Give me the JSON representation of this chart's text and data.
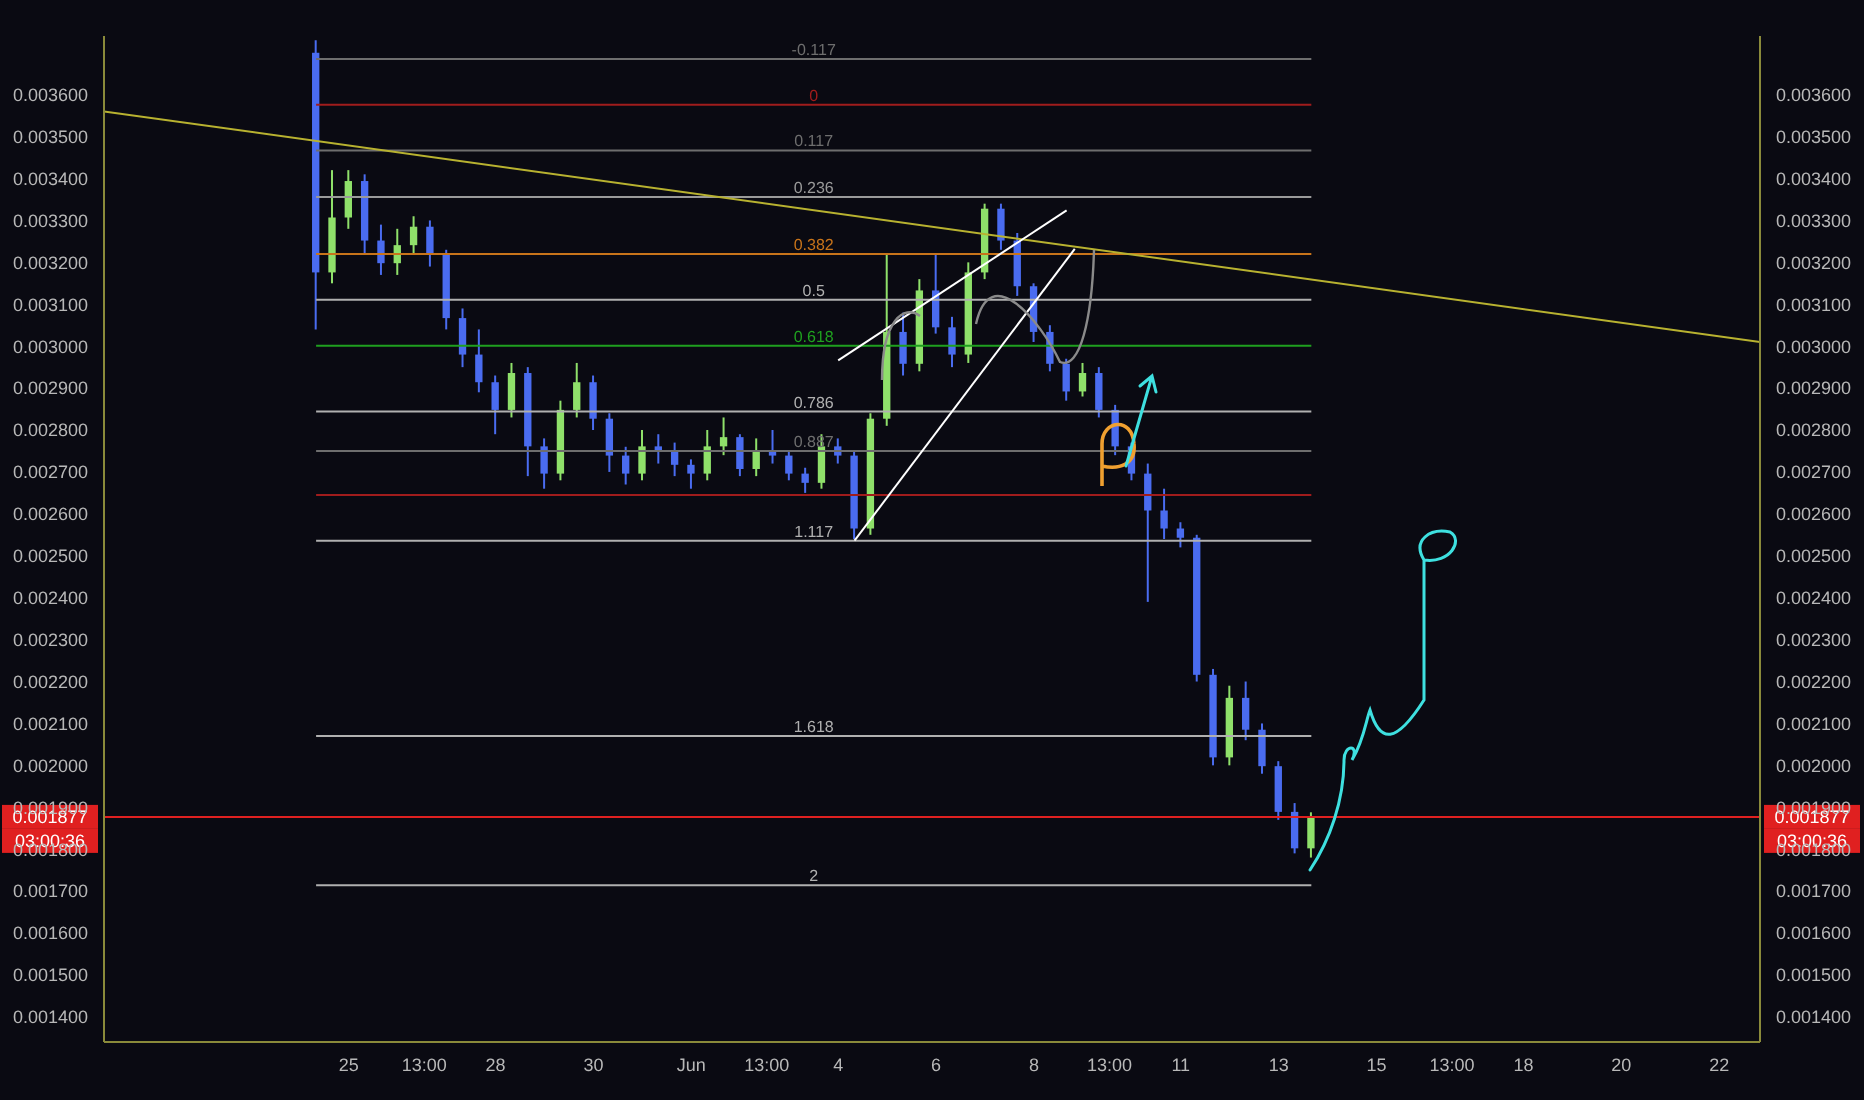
{
  "chart_data": {
    "type": "candlestick",
    "x": [
      "--05-24T08:00",
      "--05-24T16:00",
      "--05-25T00:00",
      "--05-25T08:00",
      "--05-25T16:00",
      "--05-26T00:00",
      "--05-26T08:00",
      "--05-26T16:00",
      "--05-27T00:00",
      "--05-27T08:00",
      "--05-27T16:00",
      "--05-28T00:00",
      "--05-28T08:00",
      "--05-28T16:00",
      "--05-29T00:00",
      "--05-29T08:00",
      "--05-29T16:00",
      "--05-30T00:00",
      "--05-30T08:00",
      "--05-30T16:00",
      "--05-31T00:00",
      "--05-31T08:00",
      "--05-31T16:00",
      "--06-01T00:00",
      "--06-01T08:00",
      "--06-01T16:00",
      "--06-02T00:00",
      "--06-02T08:00",
      "--06-02T16:00",
      "--06-03T00:00",
      "--06-03T08:00",
      "--06-03T16:00",
      "--06-04T00:00",
      "--06-04T08:00",
      "--06-04T16:00",
      "--06-05T00:00",
      "--06-05T08:00",
      "--06-05T16:00",
      "--06-06T00:00",
      "--06-06T08:00",
      "--06-06T16:00",
      "--06-07T00:00",
      "--06-07T08:00",
      "--06-07T16:00",
      "--06-08T00:00",
      "--06-08T08:00",
      "--06-08T16:00",
      "--06-09T00:00",
      "--06-09T08:00",
      "--06-09T16:00",
      "--06-10T00:00",
      "--06-10T08:00",
      "--06-10T16:00",
      "--06-11T00:00",
      "--06-11T08:00",
      "--06-11T16:00",
      "--06-12T00:00",
      "--06-12T08:00",
      "--06-12T16:00",
      "--06-13T00:00",
      "--06-13T08:00",
      "--06-13T16:00"
    ],
    "ohlc": [
      [
        0.0037,
        0.00373,
        0.00304,
        0.003176
      ],
      [
        0.003176,
        0.00342,
        0.00315,
        0.003307
      ],
      [
        0.003307,
        0.00342,
        0.00328,
        0.003394
      ],
      [
        0.003394,
        0.00341,
        0.00322,
        0.003252
      ],
      [
        0.003252,
        0.00329,
        0.00317,
        0.003198
      ],
      [
        0.003198,
        0.00328,
        0.00317,
        0.003241
      ],
      [
        0.003241,
        0.00331,
        0.00322,
        0.003285
      ],
      [
        0.003285,
        0.0033,
        0.00319,
        0.003219
      ],
      [
        0.003219,
        0.00323,
        0.00304,
        0.003067
      ],
      [
        0.003067,
        0.00309,
        0.00295,
        0.00298
      ],
      [
        0.00298,
        0.00304,
        0.00289,
        0.002914
      ],
      [
        0.002914,
        0.00293,
        0.00279,
        0.002848
      ],
      [
        0.002848,
        0.00296,
        0.00283,
        0.002936
      ],
      [
        0.002936,
        0.00295,
        0.00269,
        0.002761
      ],
      [
        0.002761,
        0.00278,
        0.00266,
        0.002696
      ],
      [
        0.002696,
        0.00287,
        0.00268,
        0.002848
      ],
      [
        0.002848,
        0.00296,
        0.00283,
        0.002914
      ],
      [
        0.002914,
        0.00293,
        0.0028,
        0.002827
      ],
      [
        0.002827,
        0.00284,
        0.0027,
        0.002739
      ],
      [
        0.002739,
        0.00276,
        0.00267,
        0.002696
      ],
      [
        0.002696,
        0.0028,
        0.00268,
        0.002761
      ],
      [
        0.002761,
        0.00279,
        0.00272,
        0.00275
      ],
      [
        0.00275,
        0.00277,
        0.00269,
        0.002717
      ],
      [
        0.002717,
        0.00273,
        0.00266,
        0.002696
      ],
      [
        0.002696,
        0.0028,
        0.00268,
        0.002761
      ],
      [
        0.002761,
        0.00283,
        0.00274,
        0.002783
      ],
      [
        0.002783,
        0.00279,
        0.00269,
        0.002707
      ],
      [
        0.002707,
        0.00278,
        0.00269,
        0.00275
      ],
      [
        0.00275,
        0.0028,
        0.00272,
        0.002739
      ],
      [
        0.002739,
        0.00275,
        0.00268,
        0.002696
      ],
      [
        0.002696,
        0.00271,
        0.00265,
        0.002674
      ],
      [
        0.002674,
        0.00279,
        0.00266,
        0.002761
      ],
      [
        0.002761,
        0.00278,
        0.00272,
        0.002739
      ],
      [
        0.002739,
        0.00275,
        0.00254,
        0.002565
      ],
      [
        0.002565,
        0.00284,
        0.00255,
        0.002827
      ],
      [
        0.002827,
        0.00322,
        0.00281,
        0.003034
      ],
      [
        0.003034,
        0.00308,
        0.00293,
        0.002958
      ],
      [
        0.002958,
        0.00316,
        0.00294,
        0.003133
      ],
      [
        0.003133,
        0.00322,
        0.00303,
        0.003045
      ],
      [
        0.003045,
        0.00307,
        0.00295,
        0.00298
      ],
      [
        0.00298,
        0.0032,
        0.00296,
        0.003176
      ],
      [
        0.003176,
        0.00334,
        0.00316,
        0.003328
      ],
      [
        0.003328,
        0.00334,
        0.00323,
        0.003252
      ],
      [
        0.003252,
        0.00327,
        0.00312,
        0.003143
      ],
      [
        0.003143,
        0.00315,
        0.00301,
        0.003034
      ],
      [
        0.003034,
        0.00305,
        0.00294,
        0.002958
      ],
      [
        0.002958,
        0.00297,
        0.00287,
        0.002892
      ],
      [
        0.002892,
        0.00296,
        0.00288,
        0.002936
      ],
      [
        0.002936,
        0.00295,
        0.00283,
        0.002848
      ],
      [
        0.002848,
        0.00286,
        0.00274,
        0.002761
      ],
      [
        0.002761,
        0.00277,
        0.00268,
        0.002696
      ],
      [
        0.002696,
        0.00272,
        0.00239,
        0.002608
      ],
      [
        0.002608,
        0.00266,
        0.00254,
        0.002565
      ],
      [
        0.002565,
        0.00258,
        0.00252,
        0.002543
      ],
      [
        0.002543,
        0.00255,
        0.0022,
        0.002216
      ],
      [
        0.002216,
        0.00223,
        0.002,
        0.002019
      ],
      [
        0.002019,
        0.00219,
        0.002,
        0.002161
      ],
      [
        0.002161,
        0.0022,
        0.00206,
        0.002085
      ],
      [
        0.002085,
        0.0021,
        0.00198,
        0.001998
      ],
      [
        0.001998,
        0.00201,
        0.00187,
        0.001889
      ],
      [
        0.001889,
        0.00191,
        0.00179,
        0.001802
      ],
      [
        0.001802,
        0.001888,
        0.00178,
        0.001877
      ]
    ],
    "colors": [
      "#4a6cf0",
      "#8fe06a",
      "#8fe06a",
      "#4a6cf0",
      "#4a6cf0",
      "#8fe06a",
      "#8fe06a",
      "#4a6cf0",
      "#4a6cf0",
      "#4a6cf0",
      "#4a6cf0",
      "#4a6cf0",
      "#8fe06a",
      "#4a6cf0",
      "#4a6cf0",
      "#8fe06a",
      "#8fe06a",
      "#4a6cf0",
      "#4a6cf0",
      "#4a6cf0",
      "#8fe06a",
      "#4a6cf0",
      "#4a6cf0",
      "#4a6cf0",
      "#8fe06a",
      "#8fe06a",
      "#4a6cf0",
      "#8fe06a",
      "#4a6cf0",
      "#4a6cf0",
      "#4a6cf0",
      "#8fe06a",
      "#4a6cf0",
      "#4a6cf0",
      "#8fe06a",
      "#8fe06a",
      "#4a6cf0",
      "#8fe06a",
      "#4a6cf0",
      "#4a6cf0",
      "#8fe06a",
      "#8fe06a",
      "#4a6cf0",
      "#4a6cf0",
      "#4a6cf0",
      "#4a6cf0",
      "#4a6cf0",
      "#8fe06a",
      "#4a6cf0",
      "#4a6cf0",
      "#4a6cf0",
      "#4a6cf0",
      "#4a6cf0",
      "#4a6cf0",
      "#4a6cf0",
      "#4a6cf0",
      "#8fe06a",
      "#4a6cf0",
      "#4a6cf0",
      "#4a6cf0",
      "#4a6cf0",
      "#8fe06a"
    ],
    "series": [
      {
        "type": "line",
        "color": "#b8b230",
        "x": [
          "--05-20T00:00",
          "--06-22T20:00"
        ],
        "values": [
          0.00356,
          0.00301
        ]
      },
      {
        "type": "line",
        "color": "#ffffff",
        "x": [
          "--06-04T08:00",
          "--06-08T20:00"
        ],
        "values": [
          0.002536,
          0.003232
        ]
      },
      {
        "type": "line",
        "color": "#ffffff",
        "x": [
          "--06-04T00:00",
          "--06-08T16:00"
        ],
        "values": [
          0.002966,
          0.003324
        ]
      }
    ],
    "xlim": [
      "--05-20T00:00",
      "--06-22T20:00"
    ],
    "xticks": [
      {
        "value": "--05-25",
        "label": "25"
      },
      {
        "value": "--05-26T13:00",
        "label": "13:00"
      },
      {
        "value": "--05-28",
        "label": "28"
      },
      {
        "value": "--05-30",
        "label": "30"
      },
      {
        "value": "--06-01",
        "label": "Jun"
      },
      {
        "value": "--06-02T13:00",
        "label": "13:00"
      },
      {
        "value": "--06-04",
        "label": "4"
      },
      {
        "value": "--06-06",
        "label": "6"
      },
      {
        "value": "--06-08",
        "label": "8"
      },
      {
        "value": "--06-09T13:00",
        "label": "13:00"
      },
      {
        "value": "--06-11",
        "label": "11"
      },
      {
        "value": "--06-13",
        "label": "13"
      },
      {
        "value": "--06-15",
        "label": "15"
      },
      {
        "value": "--06-16T13:00",
        "label": "13:00"
      },
      {
        "value": "--06-18",
        "label": "18"
      },
      {
        "value": "--06-20",
        "label": "20"
      },
      {
        "value": "--06-22",
        "label": "22"
      }
    ],
    "ylim": [
      0.00134,
      0.00374
    ],
    "yticks": [
      {
        "value": 0.0014,
        "label": "0.001400"
      },
      {
        "value": 0.0015,
        "label": "0.001500"
      },
      {
        "value": 0.0016,
        "label": "0.001600"
      },
      {
        "value": 0.0017,
        "label": "0.001700"
      },
      {
        "value": 0.0018,
        "label": "0.001800"
      },
      {
        "value": 0.0019,
        "label": "0.001900"
      },
      {
        "value": 0.002,
        "label": "0.002000"
      },
      {
        "value": 0.0021,
        "label": "0.002100"
      },
      {
        "value": 0.0022,
        "label": "0.002200"
      },
      {
        "value": 0.0023,
        "label": "0.002300"
      },
      {
        "value": 0.0024,
        "label": "0.002400"
      },
      {
        "value": 0.0025,
        "label": "0.002500"
      },
      {
        "value": 0.0026,
        "label": "0.002600"
      },
      {
        "value": 0.0027,
        "label": "0.002700"
      },
      {
        "value": 0.0028,
        "label": "0.002800"
      },
      {
        "value": 0.0029,
        "label": "0.002900"
      },
      {
        "value": 0.003,
        "label": "0.003000"
      },
      {
        "value": 0.0031,
        "label": "0.003100"
      },
      {
        "value": 0.0032,
        "label": "0.003200"
      },
      {
        "value": 0.0033,
        "label": "0.003300"
      },
      {
        "value": 0.0034,
        "label": "0.003400"
      },
      {
        "value": 0.0035,
        "label": "0.003500"
      },
      {
        "value": 0.0036,
        "label": "0.003600"
      }
    ],
    "y2lim": [
      0.00134,
      0.00374
    ],
    "y2ticks": [
      {
        "value": 0.0014,
        "label": "0.001400"
      },
      {
        "value": 0.0015,
        "label": "0.001500"
      },
      {
        "value": 0.0016,
        "label": "0.001600"
      },
      {
        "value": 0.0017,
        "label": "0.001700"
      },
      {
        "value": 0.0018,
        "label": "0.001800"
      },
      {
        "value": 0.0019,
        "label": "0.001900"
      },
      {
        "value": 0.002,
        "label": "0.002000"
      },
      {
        "value": 0.0021,
        "label": "0.002100"
      },
      {
        "value": 0.0022,
        "label": "0.002200"
      },
      {
        "value": 0.0023,
        "label": "0.002300"
      },
      {
        "value": 0.0024,
        "label": "0.002400"
      },
      {
        "value": 0.0025,
        "label": "0.002500"
      },
      {
        "value": 0.0026,
        "label": "0.002600"
      },
      {
        "value": 0.0027,
        "label": "0.002700"
      },
      {
        "value": 0.0028,
        "label": "0.002800"
      },
      {
        "value": 0.0029,
        "label": "0.002900"
      },
      {
        "value": 0.003,
        "label": "0.003000"
      },
      {
        "value": 0.0031,
        "label": "0.003100"
      },
      {
        "value": 0.0032,
        "label": "0.003200"
      },
      {
        "value": 0.0033,
        "label": "0.003300"
      },
      {
        "value": 0.0034,
        "label": "0.003400"
      },
      {
        "value": 0.0035,
        "label": "0.003500"
      },
      {
        "value": 0.0036,
        "label": "0.003600"
      }
    ],
    "ref_lines": [
      {
        "axis": "y",
        "value": 0.003685,
        "color": "#6e6e6e"
      },
      {
        "axis": "y",
        "value": 0.003576,
        "color": "#a01c1c"
      },
      {
        "axis": "y",
        "value": 0.003467,
        "color": "#6e6e6e"
      },
      {
        "axis": "y",
        "value": 0.003356,
        "color": "#9a9a9a"
      },
      {
        "axis": "y",
        "value": 0.00322,
        "color": "#c8741a"
      },
      {
        "axis": "y",
        "value": 0.003111,
        "color": "#b0b0b0"
      },
      {
        "axis": "y",
        "value": 0.003001,
        "color": "#1fa01f"
      },
      {
        "axis": "y",
        "value": 0.002844,
        "color": "#b0b0b0"
      },
      {
        "axis": "y",
        "value": 0.00275,
        "color": "#6e6e6e"
      },
      {
        "axis": "y",
        "value": 0.002645,
        "color": "#a01c1c"
      },
      {
        "axis": "y",
        "value": 0.002536,
        "color": "#b0b0b0"
      },
      {
        "axis": "y",
        "value": 0.00207,
        "color": "#b0b0b0"
      },
      {
        "axis": "y",
        "value": 0.001714,
        "color": "#b0b0b0"
      },
      {
        "axis": "y2",
        "value": 0.001877,
        "label": "0.001877",
        "color": "#e02020"
      }
    ],
    "annotations": [
      {
        "text": "-0.117",
        "x": "--06-03T12:00",
        "y": 0.003685
      },
      {
        "text": "0",
        "x": "--06-03T12:00",
        "y": 0.003576
      },
      {
        "text": "0.117",
        "x": "--06-03T12:00",
        "y": 0.003467
      },
      {
        "text": "0.236",
        "x": "--06-03T12:00",
        "y": 0.003356
      },
      {
        "text": "0.382",
        "x": "--06-03T12:00",
        "y": 0.00322
      },
      {
        "text": "0.5",
        "x": "--06-03T12:00",
        "y": 0.003111
      },
      {
        "text": "0.618",
        "x": "--06-03T12:00",
        "y": 0.003001
      },
      {
        "text": "0.786",
        "x": "--06-03T12:00",
        "y": 0.002844
      },
      {
        "text": "0.887",
        "x": "--06-03T12:00",
        "y": 0.00275
      },
      {
        "text": "1.117",
        "x": "--06-03T12:00",
        "y": 0.002536
      },
      {
        "text": "1.618",
        "x": "--06-03T12:00",
        "y": 0.00207
      },
      {
        "text": "2",
        "x": "--06-03T12:00",
        "y": 0.001714
      },
      "03:00:36"
    ]
  }
}
